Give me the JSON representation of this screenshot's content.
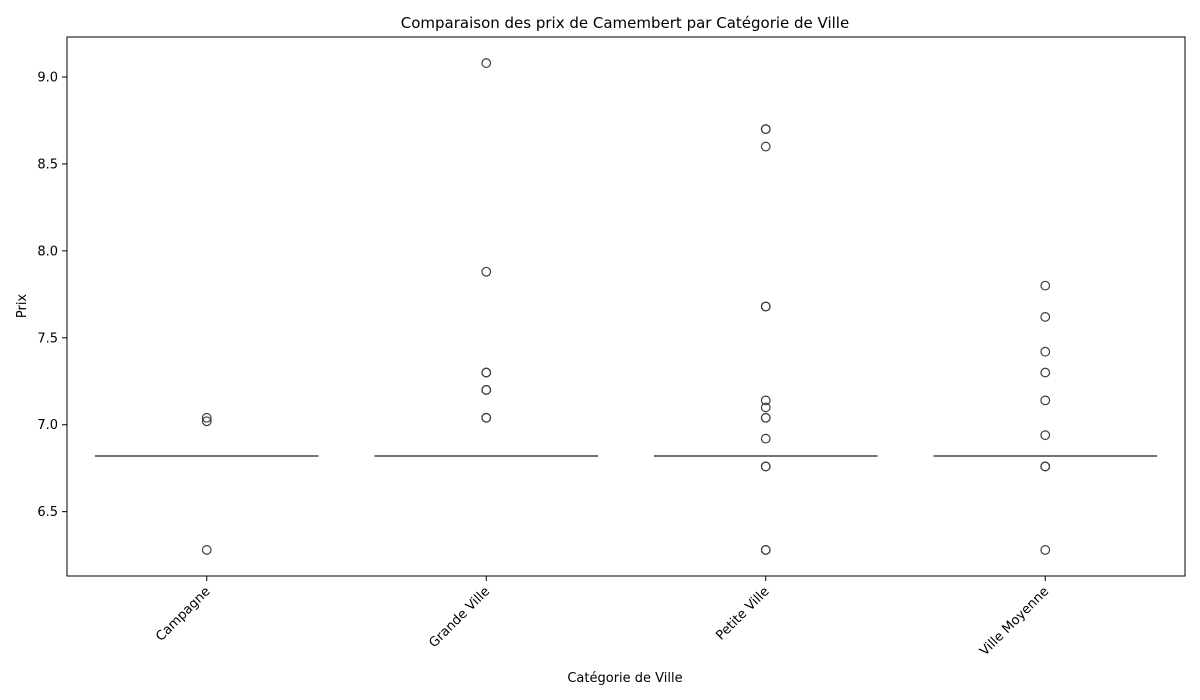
{
  "chart_data": {
    "type": "boxplot",
    "title": "Comparaison des prix de Camembert par Catégorie de Ville",
    "xlabel": "Catégorie de Ville",
    "ylabel": "Prix",
    "ylim": [
      6.13,
      9.23
    ],
    "yticks": [
      6.5,
      7.0,
      7.5,
      8.0,
      8.5,
      9.0
    ],
    "ytick_labels": [
      "6.5",
      "7.0",
      "7.5",
      "8.0",
      "8.5",
      "9.0"
    ],
    "categories": [
      "Campagne",
      "Grande Ville",
      "Petite Ville",
      "Ville Moyenne"
    ],
    "boxes": [
      {
        "category": "Campagne",
        "median": 6.82,
        "q1": 6.82,
        "q3": 6.82,
        "whisker_low": 6.82,
        "whisker_high": 6.82,
        "outliers": [
          7.04,
          7.02,
          6.28
        ]
      },
      {
        "category": "Grande Ville",
        "median": 6.82,
        "q1": 6.82,
        "q3": 6.82,
        "whisker_low": 6.82,
        "whisker_high": 6.82,
        "outliers": [
          9.08,
          7.88,
          7.3,
          7.2,
          7.04,
          7.2,
          7.3,
          7.04
        ]
      },
      {
        "category": "Petite Ville",
        "median": 6.82,
        "q1": 6.82,
        "q3": 6.82,
        "whisker_low": 6.82,
        "whisker_high": 6.82,
        "outliers": [
          8.7,
          8.7,
          8.6,
          7.68,
          7.68,
          7.14,
          7.1,
          7.04,
          6.92,
          6.76,
          6.28,
          7.04,
          6.76,
          6.28
        ]
      },
      {
        "category": "Ville Moyenne",
        "median": 6.82,
        "q1": 6.82,
        "q3": 6.82,
        "whisker_low": 6.82,
        "whisker_high": 6.82,
        "outliers": [
          7.8,
          7.62,
          7.42,
          7.3,
          7.14,
          6.94,
          6.76,
          6.28,
          6.76
        ]
      }
    ],
    "grid": false,
    "colors": {
      "box_line": "#444444",
      "outlier_edge": "#3d3d3d"
    }
  }
}
